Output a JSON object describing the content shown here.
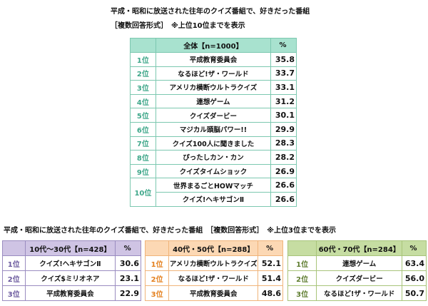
{
  "title_line1": "平成・昭和に放送された往年のクイズ番組で、好きだった番組",
  "title_line2": "［複数回答形式］　※上位10位までを表示",
  "overall": {
    "header": "全体【n=1000】",
    "pct_header": "%",
    "rows": [
      {
        "rank": "1位",
        "name": "平成教育委員会",
        "pct": "35.8"
      },
      {
        "rank": "2位",
        "name": "なるほど!ザ・ワールド",
        "pct": "33.7"
      },
      {
        "rank": "3位",
        "name": "アメリカ横断ウルトラクイズ",
        "pct": "33.1"
      },
      {
        "rank": "4位",
        "name": "連想ゲーム",
        "pct": "31.2"
      },
      {
        "rank": "5位",
        "name": "クイズダービー",
        "pct": "30.1"
      },
      {
        "rank": "6位",
        "name": "マジカル頭脳パワー!!",
        "pct": "29.9"
      },
      {
        "rank": "7位",
        "name": "クイズ100人に聞きました",
        "pct": "28.3"
      },
      {
        "rank": "8位",
        "name": "ぴったしカン・カン",
        "pct": "28.2"
      },
      {
        "rank": "9位",
        "name": "クイズタイムショック",
        "pct": "26.9"
      },
      {
        "rank": "10位",
        "name": "世界まるごとHOWマッチ",
        "pct": "26.6"
      },
      {
        "rank": "10位",
        "name": "クイズ!ヘキサゴンⅡ",
        "pct": "26.6"
      }
    ]
  },
  "subtitle": "平成・昭和に放送された往年のクイズ番組で、好きだった番組　［複数回答形式］　※上位3位までを表示",
  "groups": [
    {
      "header": "10代～30代【n=428】",
      "pct_header": "%",
      "color": "#cfc4e4",
      "rows": [
        {
          "rank": "1位",
          "name": "クイズ!ヘキサゴンⅡ",
          "pct": "30.6"
        },
        {
          "rank": "2位",
          "name": "クイズ$ミリオネア",
          "pct": "23.1"
        },
        {
          "rank": "3位",
          "name": "平成教育委員会",
          "pct": "22.9"
        }
      ]
    },
    {
      "header": "40代・50代【n=288】",
      "pct_header": "%",
      "color": "#fcd8b4",
      "rows": [
        {
          "rank": "1位",
          "name": "アメリカ横断ウルトラクイズ",
          "pct": "52.1"
        },
        {
          "rank": "2位",
          "name": "なるほど!ザ・ワールド",
          "pct": "51.4"
        },
        {
          "rank": "3位",
          "name": "平成教育委員会",
          "pct": "48.6"
        }
      ]
    },
    {
      "header": "60代・70代【n=284】",
      "pct_header": "%",
      "color": "#c6dda2",
      "rows": [
        {
          "rank": "1位",
          "name": "連想ゲーム",
          "pct": "63.4"
        },
        {
          "rank": "2位",
          "name": "クイズダービー",
          "pct": "56.0"
        },
        {
          "rank": "3位",
          "name": "なるほど!ザ・ワールド",
          "pct": "50.7"
        }
      ]
    }
  ]
}
